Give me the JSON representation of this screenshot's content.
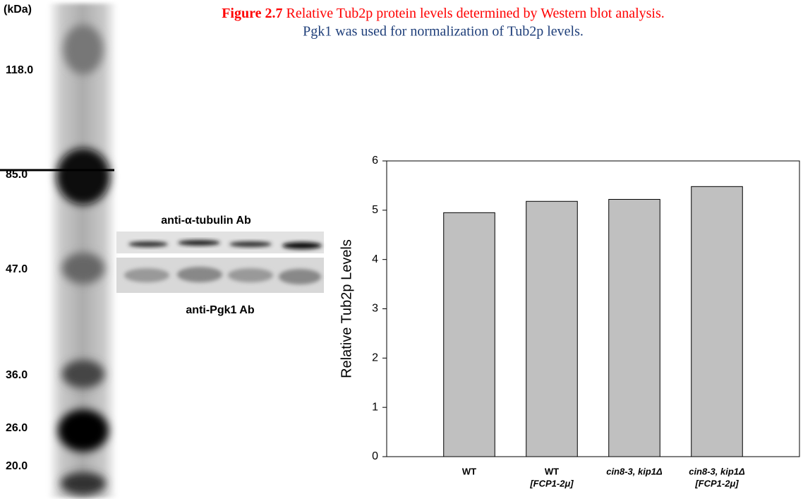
{
  "figure": {
    "label": "Figure 2.7",
    "caption_line1": "Relative Tub2p protein levels determined by Western blot analysis.",
    "caption_line2": "Pgk1 was used for normalization of Tub2p levels."
  },
  "gel": {
    "unit": "(kDa)",
    "markers": [
      "118.0",
      "85.0",
      "47.0",
      "36.0",
      "26.0",
      "20.0"
    ]
  },
  "blot": {
    "top_label": "anti-α-tubulin Ab",
    "bottom_label": "anti-Pgk1 Ab"
  },
  "chart_data": {
    "type": "bar",
    "y_label": "Relative Tub2p Levels",
    "categories": [
      [
        "WT"
      ],
      [
        "WT",
        "[FCP1-2μ]"
      ],
      [
        "cin8-3, kip1Δ"
      ],
      [
        "cin8-3, kip1Δ",
        "[FCP1-2μ]"
      ]
    ],
    "values": [
      4.95,
      5.18,
      5.22,
      5.48
    ],
    "color": "#c0c0c0",
    "ylim": [
      0,
      6
    ],
    "yticks": [
      0,
      1,
      2,
      3,
      4,
      5,
      6
    ],
    "grid": false
  }
}
